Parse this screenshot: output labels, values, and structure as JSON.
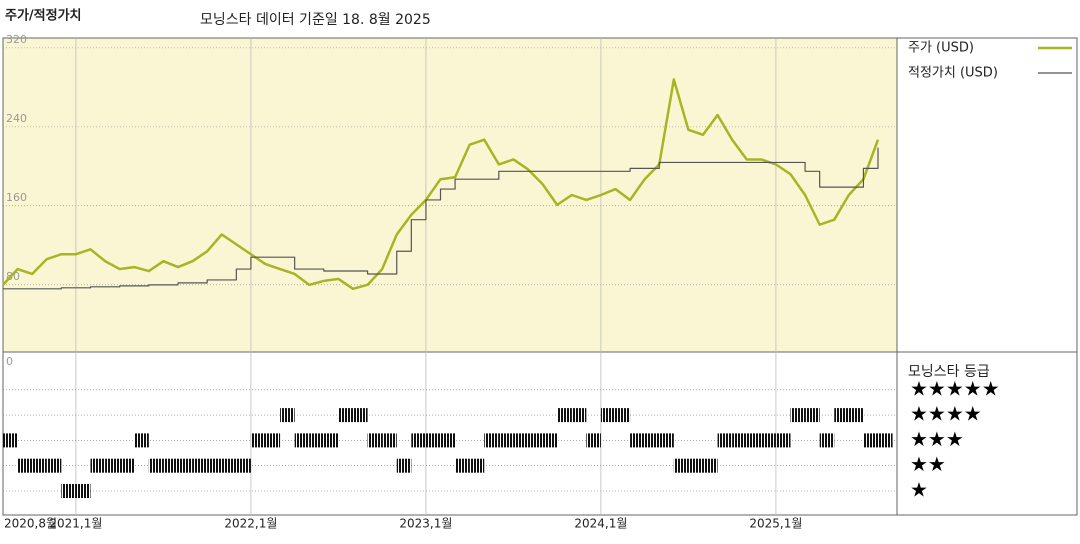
{
  "chart_data": [
    {
      "type": "line",
      "title": "주가/적정가치",
      "subtitle": "모닝스타 데이터 기준일 18. 8월 2025",
      "x": [
        "2020-08",
        "2020-09",
        "2020-10",
        "2020-11",
        "2020-12",
        "2021-01",
        "2021-02",
        "2021-03",
        "2021-04",
        "2021-05",
        "2021-06",
        "2021-07",
        "2021-08",
        "2021-09",
        "2021-10",
        "2021-11",
        "2021-12",
        "2022-01",
        "2022-02",
        "2022-03",
        "2022-04",
        "2022-05",
        "2022-06",
        "2022-07",
        "2022-08",
        "2022-09",
        "2022-10",
        "2022-11",
        "2022-12",
        "2023-01",
        "2023-02",
        "2023-03",
        "2023-04",
        "2023-05",
        "2023-06",
        "2023-07",
        "2023-08",
        "2023-09",
        "2023-10",
        "2023-11",
        "2023-12",
        "2024-01",
        "2024-02",
        "2024-03",
        "2024-04",
        "2024-05",
        "2024-06",
        "2024-07",
        "2024-08",
        "2024-09",
        "2024-10",
        "2024-11",
        "2024-12",
        "2025-01",
        "2025-02",
        "2025-03",
        "2025-04",
        "2025-05",
        "2025-06",
        "2025-07",
        "2025-08"
      ],
      "series": [
        {
          "name": "주가 (USD)",
          "color": "#a9b423",
          "values": [
            80,
            96,
            91,
            106,
            111,
            111,
            116,
            104,
            96,
            98,
            94,
            104,
            98,
            104,
            114,
            131,
            121,
            111,
            101,
            96,
            91,
            80,
            84,
            86,
            76,
            80,
            96,
            131,
            151,
            166,
            187,
            189,
            222,
            227,
            202,
            207,
            197,
            182,
            161,
            171,
            166,
            171,
            177,
            166,
            187,
            202,
            288,
            237,
            232,
            252,
            227,
            207,
            207,
            202,
            192,
            171,
            141,
            146,
            171,
            187,
            227
          ]
        },
        {
          "name": "적정가치 (USD)",
          "color": "#555555",
          "step": true,
          "values": [
            76,
            76,
            76,
            76,
            77,
            77,
            78,
            78,
            79,
            79,
            80,
            80,
            82,
            82,
            85,
            85,
            96,
            108,
            108,
            108,
            96,
            96,
            94,
            94,
            94,
            91,
            91,
            114,
            146,
            166,
            177,
            187,
            187,
            187,
            195,
            195,
            195,
            195,
            195,
            195,
            195,
            195,
            195,
            198,
            198,
            204,
            204,
            204,
            204,
            204,
            204,
            204,
            204,
            204,
            204,
            195,
            179,
            179,
            179,
            198,
            219
          ]
        }
      ],
      "ylim": [
        12,
        330
      ],
      "yticks": [
        80,
        160,
        240,
        320
      ],
      "grid": true,
      "xticks": [
        {
          "value": "2020-08",
          "label": "2020,8월"
        },
        {
          "value": "2021-01",
          "label": "2021,1월"
        },
        {
          "value": "2022-01",
          "label": "2022,1월"
        },
        {
          "value": "2023-01",
          "label": "2023,1월"
        },
        {
          "value": "2024-01",
          "label": "2024,1월"
        },
        {
          "value": "2025-01",
          "label": "2025,1월"
        }
      ]
    },
    {
      "type": "rating",
      "title": "모닝스타 등급",
      "yticks": [
        0
      ],
      "categories": [
        "★",
        "★★",
        "★★★",
        "★★★★",
        "★★★★★"
      ],
      "x": [
        "2020-08",
        "2020-09",
        "2020-10",
        "2020-11",
        "2020-12",
        "2021-01",
        "2021-02",
        "2021-03",
        "2021-04",
        "2021-05",
        "2021-06",
        "2021-07",
        "2021-08",
        "2021-09",
        "2021-10",
        "2021-11",
        "2021-12",
        "2022-01",
        "2022-02",
        "2022-03",
        "2022-04",
        "2022-05",
        "2022-06",
        "2022-07",
        "2022-08",
        "2022-09",
        "2022-10",
        "2022-11",
        "2022-12",
        "2023-01",
        "2023-02",
        "2023-03",
        "2023-04",
        "2023-05",
        "2023-06",
        "2023-07",
        "2023-08",
        "2023-09",
        "2023-10",
        "2023-11",
        "2023-12",
        "2024-01",
        "2024-02",
        "2024-03",
        "2024-04",
        "2024-05",
        "2024-06",
        "2024-07",
        "2024-08",
        "2024-09",
        "2024-10",
        "2024-11",
        "2024-12",
        "2025-01",
        "2025-02",
        "2025-03",
        "2025-04",
        "2025-05",
        "2025-06",
        "2025-07",
        "2025-08"
      ],
      "values": [
        3,
        2,
        2,
        2,
        1,
        1,
        2,
        2,
        2,
        3,
        2,
        2,
        2,
        2,
        2,
        2,
        2,
        3,
        3,
        4,
        3,
        3,
        3,
        4,
        4,
        3,
        3,
        2,
        3,
        3,
        3,
        2,
        2,
        3,
        3,
        3,
        3,
        3,
        4,
        4,
        3,
        4,
        4,
        3,
        3,
        3,
        2,
        2,
        2,
        3,
        3,
        3,
        3,
        3,
        4,
        4,
        3,
        4,
        4,
        3,
        3
      ]
    }
  ]
}
